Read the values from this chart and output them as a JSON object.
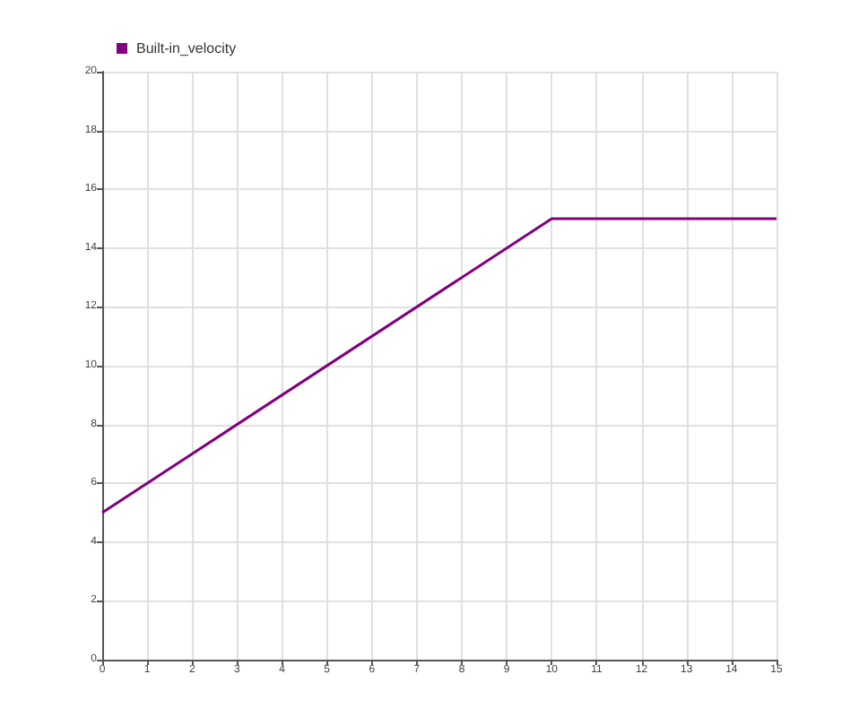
{
  "chart_data": {
    "type": "line",
    "x": [
      0,
      10,
      15
    ],
    "series": [
      {
        "name": "Built-in_velocity",
        "color": "#800080",
        "values": [
          5,
          15,
          15
        ]
      }
    ],
    "xlim": [
      0,
      15
    ],
    "xticks": [
      0,
      1,
      2,
      3,
      4,
      5,
      6,
      7,
      8,
      9,
      10,
      11,
      12,
      13,
      14,
      15
    ],
    "ylim": [
      0,
      20
    ],
    "yticks": [
      0,
      2,
      4,
      6,
      8,
      10,
      12,
      14,
      16,
      18,
      20
    ],
    "grid": true,
    "legend": "top left",
    "marker": "none",
    "line_style": "solid"
  }
}
